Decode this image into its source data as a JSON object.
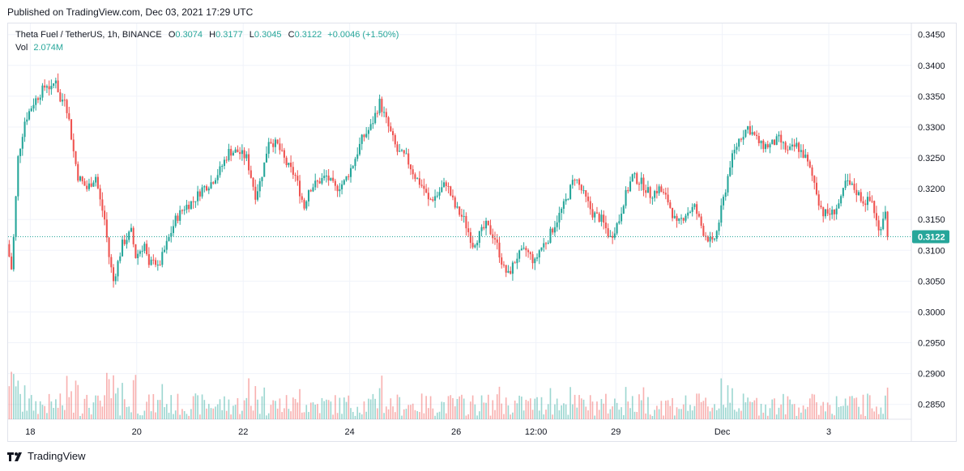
{
  "published": "Published on TradingView.com, Dec 03, 2021 17:29 UTC",
  "legend": {
    "symbol": "Theta Fuel / TetherUS, 1h, BINANCE",
    "o_label": "O",
    "o": "0.3074",
    "h_label": "H",
    "h": "0.3177",
    "l_label": "L",
    "l": "0.3045",
    "c_label": "C",
    "c": "0.3122",
    "change": "+0.0046 (+1.50%)",
    "vol_label": "Vol",
    "vol": "2.074M"
  },
  "footer": {
    "brand": "TradingView"
  },
  "colors": {
    "up": "#26a69a",
    "down": "#ef5350",
    "grid": "#f0f3fa",
    "last_price_bg": "#26a69a"
  },
  "chart_data": {
    "type": "candlestick",
    "symbol": "Theta Fuel / TetherUS",
    "interval": "1h",
    "exchange": "BINANCE",
    "y_axis": {
      "ticks": [
        0.285,
        0.29,
        0.295,
        0.3,
        0.305,
        0.31,
        0.315,
        0.32,
        0.325,
        0.33,
        0.335,
        0.34,
        0.345
      ],
      "tick_labels": [
        "0.2850",
        "0.2900",
        "0.2950",
        "0.3000",
        "0.3050",
        "0.3100",
        "0.3150",
        "0.3200",
        "0.3250",
        "0.3300",
        "0.3350",
        "0.3400",
        "0.3450"
      ],
      "range": [
        0.2826,
        0.3468
      ]
    },
    "x_axis": {
      "tick_labels": [
        "18",
        "20",
        "22",
        "24",
        "26",
        "12:00",
        "29",
        "Dec",
        "3"
      ],
      "tick_hours": [
        10,
        58,
        106,
        154,
        202,
        238,
        274,
        322,
        370
      ],
      "range_hours": [
        0,
        397
      ]
    },
    "last_price": "0.3122",
    "last_price_value": 0.3122,
    "grid": true,
    "price_path": [
      [
        0,
        0.311
      ],
      [
        2,
        0.307
      ],
      [
        3,
        0.312
      ],
      [
        5,
        0.325
      ],
      [
        8,
        0.331
      ],
      [
        12,
        0.334
      ],
      [
        16,
        0.336
      ],
      [
        18,
        0.337
      ],
      [
        20,
        0.336
      ],
      [
        22,
        0.338
      ],
      [
        24,
        0.334
      ],
      [
        26,
        0.335
      ],
      [
        28,
        0.331
      ],
      [
        30,
        0.326
      ],
      [
        32,
        0.322
      ],
      [
        36,
        0.32
      ],
      [
        40,
        0.322
      ],
      [
        42,
        0.318
      ],
      [
        44,
        0.315
      ],
      [
        46,
        0.309
      ],
      [
        48,
        0.305
      ],
      [
        52,
        0.311
      ],
      [
        56,
        0.313
      ],
      [
        58,
        0.309
      ],
      [
        62,
        0.311
      ],
      [
        64,
        0.307
      ],
      [
        66,
        0.309
      ],
      [
        68,
        0.307
      ],
      [
        72,
        0.311
      ],
      [
        76,
        0.315
      ],
      [
        80,
        0.317
      ],
      [
        84,
        0.318
      ],
      [
        88,
        0.32
      ],
      [
        92,
        0.321
      ],
      [
        96,
        0.323
      ],
      [
        100,
        0.326
      ],
      [
        104,
        0.326
      ],
      [
        108,
        0.325
      ],
      [
        112,
        0.319
      ],
      [
        114,
        0.321
      ],
      [
        116,
        0.324
      ],
      [
        118,
        0.328
      ],
      [
        122,
        0.327
      ],
      [
        126,
        0.324
      ],
      [
        130,
        0.322
      ],
      [
        134,
        0.317
      ],
      [
        136,
        0.32
      ],
      [
        140,
        0.321
      ],
      [
        144,
        0.322
      ],
      [
        148,
        0.32
      ],
      [
        152,
        0.321
      ],
      [
        156,
        0.324
      ],
      [
        160,
        0.328
      ],
      [
        164,
        0.33
      ],
      [
        168,
        0.334
      ],
      [
        172,
        0.33
      ],
      [
        176,
        0.326
      ],
      [
        180,
        0.325
      ],
      [
        184,
        0.322
      ],
      [
        188,
        0.32
      ],
      [
        190,
        0.318
      ],
      [
        194,
        0.319
      ],
      [
        198,
        0.321
      ],
      [
        202,
        0.317
      ],
      [
        206,
        0.315
      ],
      [
        208,
        0.313
      ],
      [
        210,
        0.311
      ],
      [
        214,
        0.313
      ],
      [
        216,
        0.314
      ],
      [
        220,
        0.312
      ],
      [
        224,
        0.307
      ],
      [
        226,
        0.306
      ],
      [
        230,
        0.309
      ],
      [
        234,
        0.31
      ],
      [
        238,
        0.308
      ],
      [
        240,
        0.31
      ],
      [
        244,
        0.312
      ],
      [
        248,
        0.315
      ],
      [
        252,
        0.318
      ],
      [
        256,
        0.322
      ],
      [
        260,
        0.319
      ],
      [
        264,
        0.316
      ],
      [
        268,
        0.315
      ],
      [
        272,
        0.312
      ],
      [
        276,
        0.315
      ],
      [
        278,
        0.318
      ],
      [
        282,
        0.322
      ],
      [
        286,
        0.321
      ],
      [
        290,
        0.319
      ],
      [
        294,
        0.32
      ],
      [
        298,
        0.318
      ],
      [
        302,
        0.314
      ],
      [
        306,
        0.316
      ],
      [
        310,
        0.317
      ],
      [
        314,
        0.313
      ],
      [
        318,
        0.311
      ],
      [
        320,
        0.313
      ],
      [
        324,
        0.32
      ],
      [
        326,
        0.324
      ],
      [
        330,
        0.328
      ],
      [
        334,
        0.33
      ],
      [
        336,
        0.329
      ],
      [
        340,
        0.327
      ],
      [
        344,
        0.327
      ],
      [
        348,
        0.328
      ],
      [
        352,
        0.326
      ],
      [
        356,
        0.327
      ],
      [
        360,
        0.325
      ],
      [
        364,
        0.321
      ],
      [
        366,
        0.318
      ],
      [
        368,
        0.316
      ],
      [
        372,
        0.316
      ],
      [
        376,
        0.318
      ],
      [
        378,
        0.321
      ],
      [
        382,
        0.32
      ],
      [
        386,
        0.318
      ],
      [
        390,
        0.318
      ],
      [
        393,
        0.313
      ],
      [
        397,
        0.318
      ]
    ],
    "price_path_note_removed": true
  }
}
